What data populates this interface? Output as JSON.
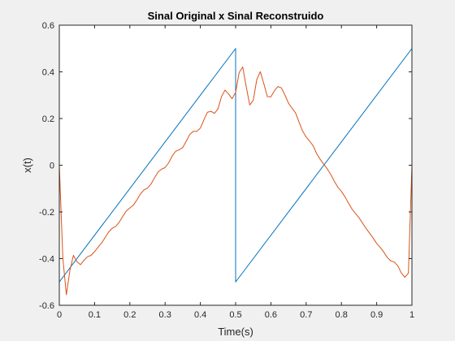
{
  "chart_data": {
    "type": "line",
    "title": "Sinal Original x Sinal Reconstruido",
    "xlabel": "Time(s)",
    "ylabel": "x(t)",
    "xlim": [
      0,
      1
    ],
    "ylim": [
      -0.6,
      0.6
    ],
    "xticks": [
      0,
      0.1,
      0.2,
      0.3,
      0.4,
      0.5,
      0.6,
      0.7,
      0.8,
      0.9,
      1
    ],
    "xtick_labels": [
      "0",
      "0.1",
      "0.2",
      "0.3",
      "0.4",
      "0.5",
      "0.6",
      "0.7",
      "0.8",
      "0.9",
      "1"
    ],
    "yticks": [
      -0.6,
      -0.4,
      -0.2,
      0,
      0.2,
      0.4,
      0.6
    ],
    "ytick_labels": [
      "-0.6",
      "-0.4",
      "-0.2",
      "0",
      "0.2",
      "0.4",
      "0.6"
    ],
    "grid": false,
    "series": [
      {
        "color": "#0072bd",
        "x": [
          0,
          0.5,
          0.5,
          1
        ],
        "y": [
          -0.5,
          0.5,
          -0.5,
          0.5
        ]
      },
      {
        "color": "#d95319",
        "x": [
          0,
          0.01,
          0.02,
          0.03,
          0.04,
          0.05,
          0.06,
          0.07,
          0.08,
          0.09,
          0.1,
          0.11,
          0.12,
          0.13,
          0.14,
          0.15,
          0.16,
          0.17,
          0.18,
          0.19,
          0.2,
          0.21,
          0.22,
          0.23,
          0.24,
          0.25,
          0.26,
          0.27,
          0.28,
          0.29,
          0.3,
          0.31,
          0.32,
          0.33,
          0.34,
          0.35,
          0.36,
          0.37,
          0.38,
          0.39,
          0.4,
          0.41,
          0.42,
          0.43,
          0.44,
          0.45,
          0.46,
          0.47,
          0.48,
          0.49,
          0.5,
          0.51,
          0.52,
          0.53,
          0.54,
          0.55,
          0.56,
          0.57,
          0.58,
          0.59,
          0.6,
          0.61,
          0.62,
          0.63,
          0.64,
          0.65,
          0.66,
          0.67,
          0.68,
          0.69,
          0.7,
          0.71,
          0.72,
          0.73,
          0.74,
          0.75,
          0.76,
          0.77,
          0.78,
          0.79,
          0.8,
          0.81,
          0.82,
          0.83,
          0.84,
          0.85,
          0.86,
          0.87,
          0.88,
          0.89,
          0.9,
          0.91,
          0.92,
          0.93,
          0.94,
          0.95,
          0.96,
          0.97,
          0.98,
          0.99,
          1
        ],
        "y": [
          0,
          -0.397,
          -0.555,
          -0.451,
          -0.386,
          -0.413,
          -0.426,
          -0.407,
          -0.392,
          -0.386,
          -0.37,
          -0.351,
          -0.333,
          -0.31,
          -0.286,
          -0.27,
          -0.262,
          -0.244,
          -0.219,
          -0.196,
          -0.183,
          -0.171,
          -0.149,
          -0.123,
          -0.106,
          -0.098,
          -0.081,
          -0.054,
          -0.029,
          -0.017,
          -0.01,
          0.01,
          0.039,
          0.06,
          0.066,
          0.076,
          0.103,
          0.132,
          0.145,
          0.145,
          0.159,
          0.194,
          0.227,
          0.231,
          0.222,
          0.242,
          0.294,
          0.322,
          0.305,
          0.285,
          0.312,
          0.397,
          0.421,
          0.337,
          0.258,
          0.278,
          0.367,
          0.401,
          0.349,
          0.294,
          0.293,
          0.319,
          0.337,
          0.331,
          0.3,
          0.266,
          0.244,
          0.224,
          0.184,
          0.146,
          0.121,
          0.103,
          0.083,
          0.049,
          0.025,
          0.004,
          -0.016,
          -0.04,
          -0.069,
          -0.094,
          -0.112,
          -0.135,
          -0.162,
          -0.188,
          -0.207,
          -0.225,
          -0.248,
          -0.271,
          -0.291,
          -0.312,
          -0.335,
          -0.352,
          -0.372,
          -0.395,
          -0.41,
          -0.415,
          -0.431,
          -0.462,
          -0.48,
          -0.462,
          0
        ]
      }
    ]
  }
}
